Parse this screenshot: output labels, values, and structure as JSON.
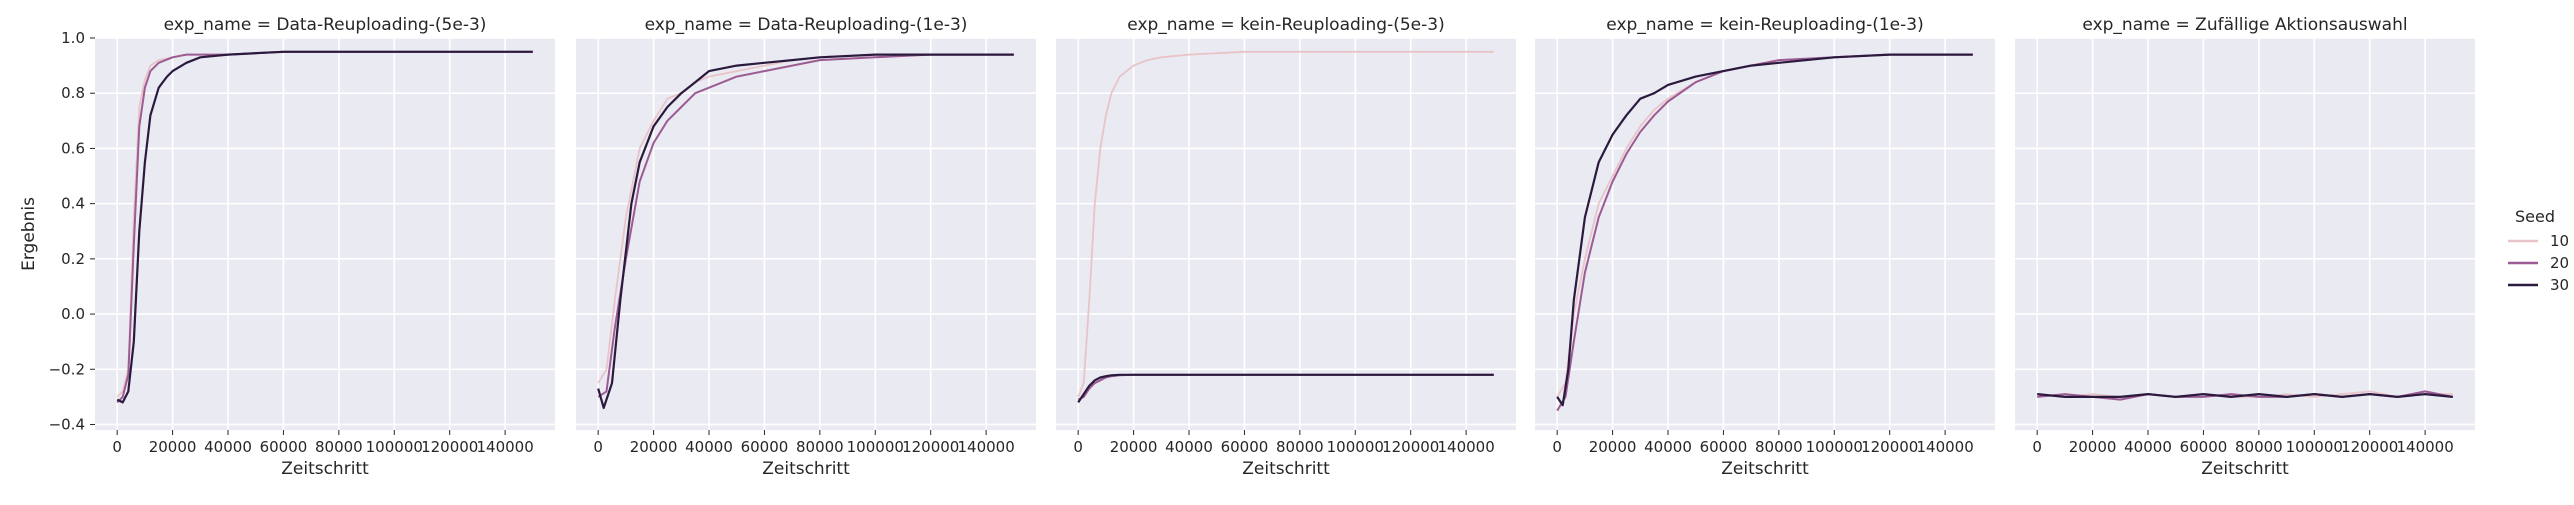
{
  "chart_data": {
    "type": "line",
    "xlabel": "Zeitschritt",
    "ylabel": "Ergebnis",
    "xlim": [
      -8000,
      158000
    ],
    "ylim": [
      -0.42,
      1.0
    ],
    "xticks": [
      0,
      20000,
      40000,
      60000,
      80000,
      100000,
      120000,
      140000
    ],
    "xtick_labels": [
      "0",
      "20000",
      "40000",
      "60000",
      "80000",
      "100000",
      "120000",
      "140000"
    ],
    "yticks": [
      -0.4,
      -0.2,
      0.0,
      0.2,
      0.4,
      0.6,
      0.8,
      1.0
    ],
    "ytick_labels": [
      "−0.4",
      "−0.2",
      "0.0",
      "0.2",
      "0.4",
      "0.6",
      "0.8",
      "1.0"
    ],
    "grid": true,
    "legend": {
      "title": "Seed",
      "placement": "right",
      "entries": [
        {
          "label": "10",
          "color": "#e8c4c8"
        },
        {
          "label": "20",
          "color": "#9c5b92"
        },
        {
          "label": "30",
          "color": "#2b1a3e"
        }
      ]
    },
    "panels": [
      {
        "title": "exp_name = Data-Reuploading-(5e-3)",
        "series": [
          {
            "name": "10",
            "x": [
              0,
              2000,
              4000,
              6000,
              8000,
              10000,
              12000,
              15000,
              20000,
              25000,
              30000,
              40000,
              60000,
              80000,
              100000,
              120000,
              150000
            ],
            "y": [
              -0.3,
              -0.28,
              -0.2,
              0.35,
              0.75,
              0.85,
              0.9,
              0.92,
              0.93,
              0.94,
              0.94,
              0.94,
              0.95,
              0.95,
              0.95,
              0.95,
              0.95
            ]
          },
          {
            "name": "20",
            "x": [
              0,
              2000,
              4000,
              6000,
              8000,
              10000,
              12000,
              15000,
              20000,
              25000,
              30000,
              40000,
              60000,
              80000,
              100000,
              120000,
              150000
            ],
            "y": [
              -0.32,
              -0.3,
              -0.22,
              0.25,
              0.68,
              0.82,
              0.88,
              0.91,
              0.93,
              0.94,
              0.94,
              0.94,
              0.95,
              0.95,
              0.95,
              0.95,
              0.95
            ]
          },
          {
            "name": "30",
            "x": [
              0,
              2000,
              4000,
              6000,
              8000,
              10000,
              12000,
              15000,
              18000,
              20000,
              25000,
              30000,
              40000,
              60000,
              80000,
              100000,
              120000,
              150000
            ],
            "y": [
              -0.31,
              -0.32,
              -0.28,
              -0.1,
              0.3,
              0.55,
              0.72,
              0.82,
              0.86,
              0.88,
              0.91,
              0.93,
              0.94,
              0.95,
              0.95,
              0.95,
              0.95,
              0.95
            ]
          }
        ]
      },
      {
        "title": "exp_name = Data-Reuploading-(1e-3)",
        "series": [
          {
            "name": "10",
            "x": [
              0,
              3000,
              6000,
              10000,
              15000,
              20000,
              25000,
              30000,
              35000,
              40000,
              50000,
              60000,
              70000,
              80000,
              100000,
              120000,
              150000
            ],
            "y": [
              -0.25,
              -0.2,
              0.05,
              0.35,
              0.6,
              0.7,
              0.78,
              0.8,
              0.84,
              0.86,
              0.88,
              0.9,
              0.92,
              0.93,
              0.94,
              0.94,
              0.94
            ]
          },
          {
            "name": "20",
            "x": [
              0,
              3000,
              6000,
              10000,
              15000,
              20000,
              25000,
              30000,
              35000,
              40000,
              50000,
              60000,
              70000,
              80000,
              100000,
              120000,
              150000
            ],
            "y": [
              -0.3,
              -0.28,
              -0.05,
              0.2,
              0.48,
              0.62,
              0.7,
              0.75,
              0.8,
              0.82,
              0.86,
              0.88,
              0.9,
              0.92,
              0.93,
              0.94,
              0.94
            ]
          },
          {
            "name": "30",
            "x": [
              0,
              2000,
              5000,
              8000,
              12000,
              15000,
              20000,
              25000,
              30000,
              35000,
              40000,
              50000,
              60000,
              70000,
              80000,
              100000,
              120000,
              150000
            ],
            "y": [
              -0.27,
              -0.34,
              -0.25,
              0.05,
              0.4,
              0.55,
              0.68,
              0.75,
              0.8,
              0.84,
              0.88,
              0.9,
              0.91,
              0.92,
              0.93,
              0.94,
              0.94,
              0.94
            ]
          }
        ]
      },
      {
        "title": "exp_name = kein-Reuploading-(5e-3)",
        "series": [
          {
            "name": "10",
            "x": [
              0,
              2000,
              4000,
              6000,
              8000,
              10000,
              12000,
              15000,
              20000,
              25000,
              30000,
              40000,
              60000,
              80000,
              100000,
              120000,
              150000
            ],
            "y": [
              -0.3,
              -0.25,
              0.05,
              0.4,
              0.6,
              0.72,
              0.8,
              0.86,
              0.9,
              0.92,
              0.93,
              0.94,
              0.95,
              0.95,
              0.95,
              0.95,
              0.95
            ]
          },
          {
            "name": "20",
            "x": [
              0,
              2000,
              4000,
              6000,
              8000,
              10000,
              12000,
              15000,
              20000,
              30000,
              60000,
              100000,
              150000
            ],
            "y": [
              -0.31,
              -0.3,
              -0.27,
              -0.25,
              -0.24,
              -0.23,
              -0.225,
              -0.222,
              -0.22,
              -0.22,
              -0.22,
              -0.22,
              -0.22
            ]
          },
          {
            "name": "30",
            "x": [
              0,
              2000,
              4000,
              6000,
              8000,
              10000,
              12000,
              15000,
              20000,
              30000,
              60000,
              100000,
              150000
            ],
            "y": [
              -0.32,
              -0.29,
              -0.26,
              -0.24,
              -0.23,
              -0.225,
              -0.222,
              -0.22,
              -0.22,
              -0.22,
              -0.22,
              -0.22,
              -0.22
            ]
          }
        ]
      },
      {
        "title": "exp_name = kein-Reuploading-(1e-3)",
        "series": [
          {
            "name": "10",
            "x": [
              0,
              3000,
              6000,
              10000,
              15000,
              20000,
              25000,
              30000,
              35000,
              40000,
              50000,
              60000,
              70000,
              80000,
              100000,
              120000,
              150000
            ],
            "y": [
              -0.3,
              -0.25,
              0.0,
              0.2,
              0.4,
              0.5,
              0.6,
              0.68,
              0.74,
              0.78,
              0.84,
              0.88,
              0.9,
              0.92,
              0.93,
              0.94,
              0.94
            ]
          },
          {
            "name": "20",
            "x": [
              0,
              3000,
              6000,
              10000,
              15000,
              20000,
              25000,
              30000,
              35000,
              40000,
              50000,
              60000,
              70000,
              80000,
              100000,
              120000,
              150000
            ],
            "y": [
              -0.35,
              -0.3,
              -0.1,
              0.15,
              0.35,
              0.48,
              0.58,
              0.66,
              0.72,
              0.77,
              0.84,
              0.88,
              0.9,
              0.92,
              0.93,
              0.94,
              0.94
            ]
          },
          {
            "name": "30",
            "x": [
              0,
              2000,
              4000,
              6000,
              10000,
              15000,
              20000,
              25000,
              30000,
              35000,
              40000,
              50000,
              60000,
              70000,
              80000,
              100000,
              120000,
              150000
            ],
            "y": [
              -0.3,
              -0.33,
              -0.2,
              0.05,
              0.35,
              0.55,
              0.65,
              0.72,
              0.78,
              0.8,
              0.83,
              0.86,
              0.88,
              0.9,
              0.91,
              0.93,
              0.94,
              0.94
            ]
          }
        ]
      },
      {
        "title": "exp_name = Zufällige Aktionsauswahl",
        "series": [
          {
            "name": "10",
            "x": [
              0,
              10000,
              20000,
              30000,
              40000,
              50000,
              60000,
              70000,
              80000,
              90000,
              100000,
              110000,
              120000,
              130000,
              140000,
              150000
            ],
            "y": [
              -0.29,
              -0.3,
              -0.29,
              -0.3,
              -0.29,
              -0.3,
              -0.29,
              -0.3,
              -0.3,
              -0.29,
              -0.3,
              -0.29,
              -0.28,
              -0.3,
              -0.29,
              -0.29
            ]
          },
          {
            "name": "20",
            "x": [
              0,
              10000,
              20000,
              30000,
              40000,
              50000,
              60000,
              70000,
              80000,
              90000,
              100000,
              110000,
              120000,
              130000,
              140000,
              150000
            ],
            "y": [
              -0.3,
              -0.29,
              -0.3,
              -0.31,
              -0.29,
              -0.3,
              -0.3,
              -0.29,
              -0.3,
              -0.3,
              -0.29,
              -0.3,
              -0.29,
              -0.3,
              -0.28,
              -0.3
            ]
          },
          {
            "name": "30",
            "x": [
              0,
              10000,
              20000,
              30000,
              40000,
              50000,
              60000,
              70000,
              80000,
              90000,
              100000,
              110000,
              120000,
              130000,
              140000,
              150000
            ],
            "y": [
              -0.29,
              -0.3,
              -0.3,
              -0.3,
              -0.29,
              -0.3,
              -0.29,
              -0.3,
              -0.29,
              -0.3,
              -0.29,
              -0.3,
              -0.29,
              -0.3,
              -0.29,
              -0.3
            ]
          }
        ]
      }
    ]
  }
}
